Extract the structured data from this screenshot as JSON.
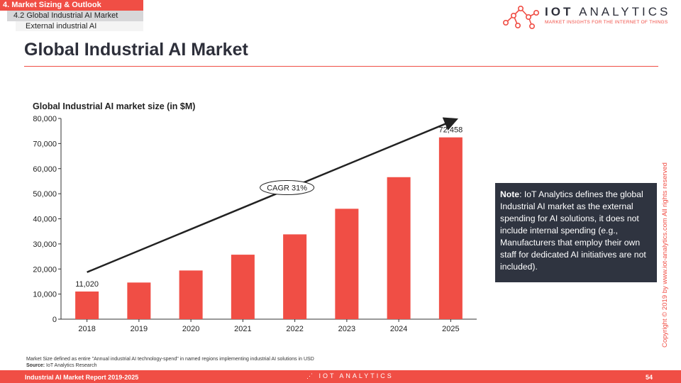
{
  "breadcrumb": {
    "section": "4. Market Sizing & Outlook",
    "subsection": "4.2 Global Industrial AI Market",
    "topic": "External industrial AI"
  },
  "logo": {
    "name_bold": "IOT",
    "name_rest": "ANALYTICS",
    "tagline": "MARKET INSIGHTS FOR THE INTERNET OF THINGS"
  },
  "page_title": "Global Industrial AI Market",
  "note": {
    "label": "Note",
    "text": ": IoT Analytics defines the global Industrial AI market as the external spending for AI solutions, it does not include internal spending (e.g., Manufacturers that employ their own staff for dedicated AI initiatives are not included)."
  },
  "copyright": "Copyright © 2019 by www.iot-analytics.com All rights reserved",
  "footnote": {
    "line1": "Market Size defined as entire \"Annual industrial AI technology-spend\" in named regions implementing industrial AI solutions in USD",
    "source_label": "Source:",
    "source_value": " IoT Analytics Research"
  },
  "footer": {
    "report": "Industrial AI Market Report 2019-2025",
    "logo_text": "IOT ANALYTICS",
    "page_number": "54"
  },
  "colors": {
    "accent": "#f04e45",
    "dark": "#2f3440"
  },
  "chart_data": {
    "type": "bar",
    "title": "Global Industrial AI market size (in $M)",
    "xlabel": "",
    "ylabel": "",
    "categories": [
      "2018",
      "2019",
      "2020",
      "2021",
      "2022",
      "2023",
      "2024",
      "2025"
    ],
    "values": [
      11020,
      14600,
      19400,
      25700,
      33800,
      44000,
      56600,
      72458
    ],
    "data_labels": [
      "11,020",
      "",
      "",
      "",
      "",
      "",
      "",
      "72,458"
    ],
    "ylim": [
      0,
      80000
    ],
    "yticks": [
      0,
      10000,
      20000,
      30000,
      40000,
      50000,
      60000,
      70000,
      80000
    ],
    "ytick_labels": [
      "0",
      "10,000",
      "20,000",
      "30,000",
      "40,000",
      "50,000",
      "60,000",
      "70,000",
      "80,000"
    ],
    "annotation": "CAGR 31%",
    "grid": false,
    "legend": "none"
  }
}
